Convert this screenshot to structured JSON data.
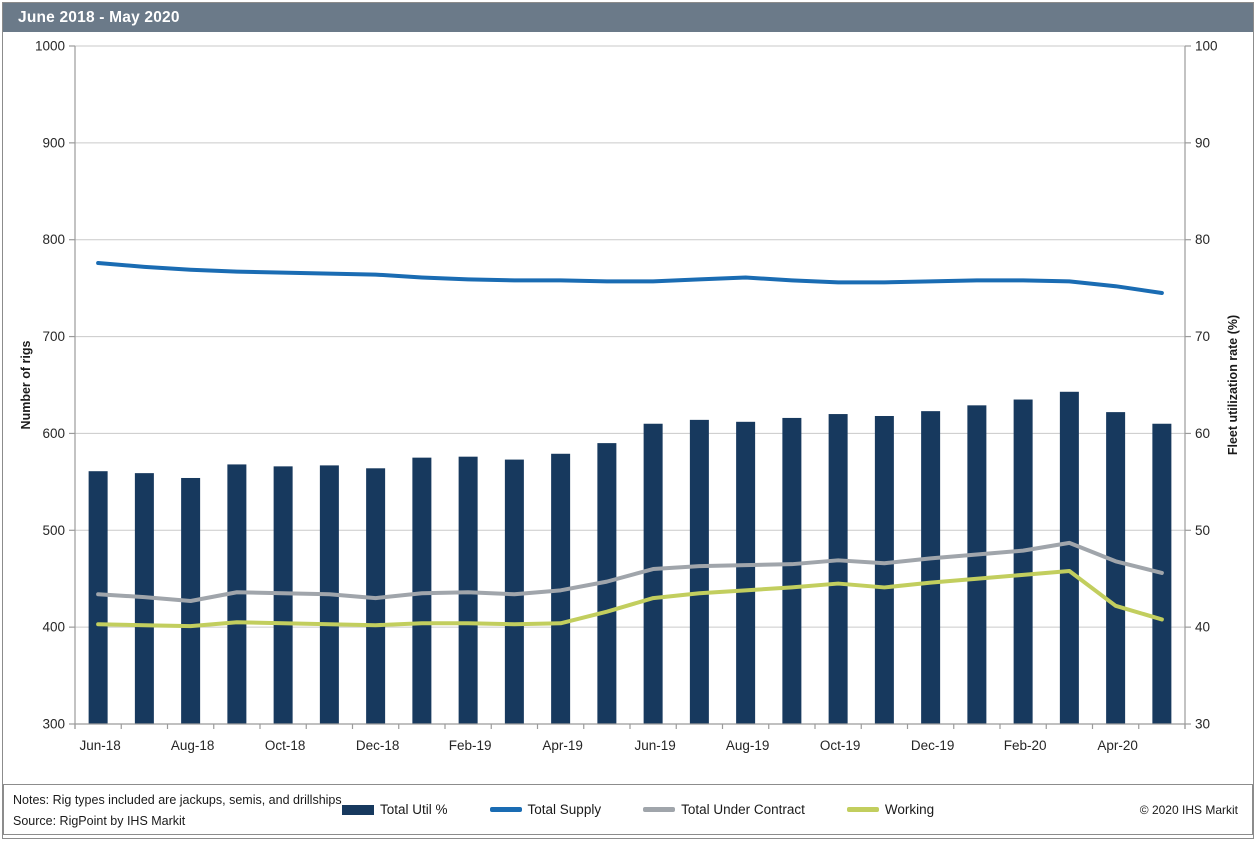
{
  "title_bar": {
    "text": "June 2018 - May 2020",
    "bg_color": "#6b7a89",
    "text_color": "#ffffff"
  },
  "chart_data": {
    "type": "combo",
    "title": "June 2018 - May 2020",
    "categories": [
      "Jun-18",
      "Jul-18",
      "Aug-18",
      "Sep-18",
      "Oct-18",
      "Nov-18",
      "Dec-18",
      "Jan-19",
      "Feb-19",
      "Mar-19",
      "Apr-19",
      "May-19",
      "Jun-19",
      "Jul-19",
      "Aug-19",
      "Sep-19",
      "Oct-19",
      "Nov-19",
      "Dec-19",
      "Jan-20",
      "Feb-20",
      "Mar-20",
      "Apr-20",
      "May-20"
    ],
    "x_axis": {
      "label_every": 2
    },
    "left_axis": {
      "title": "Number of rigs",
      "min": 300,
      "max": 1000,
      "step": 100
    },
    "right_axis": {
      "title": "Fleet utilization rate (%)",
      "min": 30,
      "max": 100,
      "step": 10
    },
    "grid": true,
    "legend_position": "bottom",
    "bar_series": {
      "name": "Total Util %",
      "axis": "right",
      "color": "#17395e",
      "values": [
        56.1,
        55.9,
        55.4,
        56.8,
        56.6,
        56.7,
        56.4,
        57.5,
        57.6,
        57.3,
        57.9,
        59.0,
        61.0,
        61.4,
        61.2,
        61.6,
        62.0,
        61.8,
        62.3,
        62.9,
        63.5,
        64.3,
        62.2,
        61.0
      ]
    },
    "line_series": [
      {
        "name": "Total Supply",
        "axis": "left",
        "color": "#1a6cb3",
        "values": [
          776,
          772,
          769,
          767,
          766,
          765,
          764,
          761,
          759,
          758,
          758,
          757,
          757,
          759,
          761,
          758,
          756,
          756,
          757,
          758,
          758,
          757,
          752,
          745
        ]
      },
      {
        "name": "Total Under Contract",
        "axis": "left",
        "color": "#a0a5ab",
        "values": [
          434,
          431,
          427,
          436,
          435,
          434,
          430,
          435,
          436,
          434,
          438,
          447,
          460,
          463,
          464,
          465,
          469,
          466,
          471,
          475,
          479,
          487,
          468,
          456
        ]
      },
      {
        "name": "Working",
        "axis": "left",
        "color": "#c2ce5e",
        "values": [
          403,
          402,
          401,
          405,
          404,
          403,
          402,
          404,
          404,
          403,
          404,
          416,
          430,
          435,
          438,
          441,
          445,
          441,
          446,
          450,
          454,
          458,
          422,
          408
        ]
      }
    ],
    "gridline_color": "#cacaca",
    "axis_line_color": "#9b9b9b"
  },
  "footer": {
    "notes": "Notes: Rig types included are jackups, semis, and drillships",
    "source": "Source: RigPoint by IHS Markit",
    "copyright": "© 2020 IHS Markit"
  }
}
